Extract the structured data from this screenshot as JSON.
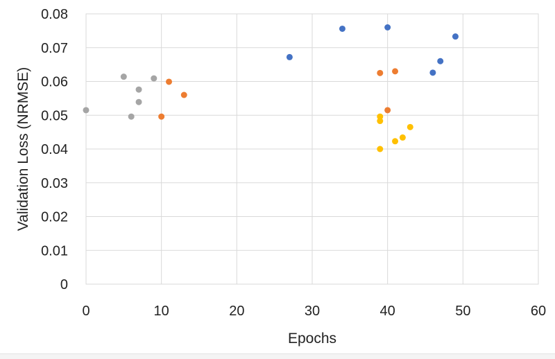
{
  "chart_data": {
    "type": "scatter",
    "xlabel": "Epochs",
    "ylabel": "Validation Loss (NRMSE)",
    "xlim": [
      0,
      60
    ],
    "ylim": [
      0,
      0.08
    ],
    "x_ticks": [
      "0",
      "10",
      "20",
      "30",
      "40",
      "50",
      "60"
    ],
    "y_ticks": [
      "0",
      "0.01",
      "0.02",
      "0.03",
      "0.04",
      "0.05",
      "0.06",
      "0.07",
      "0.08"
    ],
    "grid": true,
    "series": [
      {
        "color": "#4472C4",
        "points": [
          [
            27,
            0.0672
          ],
          [
            34,
            0.0756
          ],
          [
            40,
            0.076
          ],
          [
            46,
            0.0626
          ],
          [
            47,
            0.066
          ],
          [
            49,
            0.0733
          ]
        ]
      },
      {
        "color": "#ED7D31",
        "points": [
          [
            10,
            0.0496
          ],
          [
            11,
            0.0599
          ],
          [
            13,
            0.056
          ],
          [
            39,
            0.0625
          ],
          [
            40,
            0.0515
          ],
          [
            41,
            0.063
          ]
        ]
      },
      {
        "color": "#A5A5A5",
        "points": [
          [
            0,
            0.0515
          ],
          [
            5,
            0.0614
          ],
          [
            6,
            0.0496
          ],
          [
            7,
            0.0576
          ],
          [
            7,
            0.0539
          ],
          [
            9,
            0.0609
          ]
        ]
      },
      {
        "color": "#FFC000",
        "points": [
          [
            39,
            0.04
          ],
          [
            39,
            0.0483
          ],
          [
            39,
            0.0496
          ],
          [
            41,
            0.0423
          ],
          [
            42,
            0.0434
          ],
          [
            43,
            0.0465
          ]
        ]
      }
    ]
  }
}
